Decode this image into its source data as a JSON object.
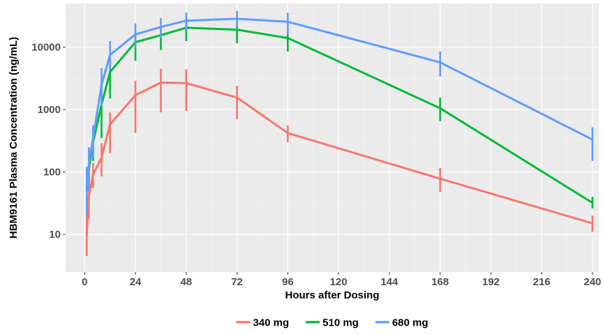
{
  "chart_data": {
    "type": "line",
    "title": "",
    "xlabel": "Hours after Dosing",
    "ylabel": "HBM9161 Plasma Concentration (ng/mL)",
    "xlim": [
      -9,
      243
    ],
    "ylim": [
      2.5,
      50000
    ],
    "y_scale": "log",
    "x_ticks": [
      0,
      24,
      48,
      72,
      96,
      120,
      144,
      168,
      192,
      216,
      240
    ],
    "x_tick_labels": [
      "0",
      "24",
      "48",
      "72",
      "96",
      "120",
      "144",
      "168",
      "192",
      "216",
      "240"
    ],
    "y_ticks": [
      10,
      100,
      1000,
      10000
    ],
    "y_tick_labels": [
      "10",
      "100",
      "1000",
      "10000"
    ],
    "grid": true,
    "legend_position": "bottom",
    "error_bars": true,
    "series": [
      {
        "name": "340 mg",
        "color": "#F8766D",
        "x": [
          1,
          2,
          4,
          8,
          12,
          24,
          36,
          48,
          72,
          96,
          168,
          240
        ],
        "y": [
          10,
          40,
          90,
          170,
          580,
          1700,
          2700,
          2650,
          1550,
          420,
          78,
          15
        ],
        "lower": [
          4.5,
          18,
          55,
          85,
          200,
          420,
          900,
          950,
          700,
          300,
          48,
          11
        ],
        "upper": [
          22,
          80,
          140,
          290,
          900,
          2900,
          4500,
          4400,
          2400,
          560,
          115,
          20
        ]
      },
      {
        "name": "510 mg",
        "color": "#00BA38",
        "x": [
          1,
          2,
          4,
          8,
          12,
          24,
          36,
          48,
          72,
          96,
          168,
          240
        ],
        "y": [
          50,
          110,
          300,
          1200,
          4000,
          12000,
          15500,
          20500,
          19000,
          14000,
          1050,
          32
        ],
        "lower": [
          30,
          60,
          150,
          350,
          1500,
          6000,
          9000,
          12500,
          11500,
          8500,
          650,
          26
        ],
        "upper": [
          90,
          180,
          500,
          2600,
          6500,
          17000,
          22000,
          27500,
          26000,
          21000,
          1550,
          40
        ]
      },
      {
        "name": "680 mg",
        "color": "#619CFF",
        "x": [
          1,
          2,
          4,
          8,
          12,
          24,
          36,
          48,
          72,
          96,
          168,
          240
        ],
        "y": [
          60,
          130,
          350,
          2500,
          7500,
          16000,
          21000,
          26500,
          28500,
          25500,
          5700,
          330
        ],
        "lower": [
          20,
          50,
          170,
          1150,
          4200,
          10000,
          14000,
          18500,
          20500,
          16000,
          3400,
          150
        ],
        "upper": [
          120,
          250,
          560,
          4600,
          12500,
          24000,
          29000,
          36000,
          38000,
          35500,
          8500,
          520
        ]
      }
    ]
  }
}
